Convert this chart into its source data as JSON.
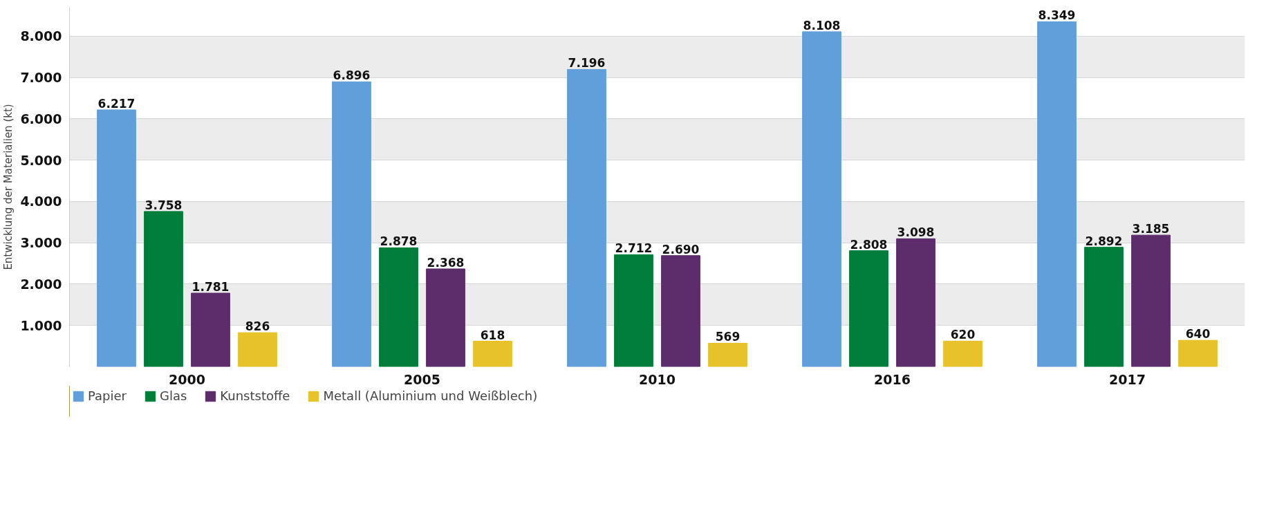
{
  "chart_data": {
    "type": "bar",
    "ylabel": "Entwicklung der Materialien (kt)",
    "categories": [
      "2000",
      "2005",
      "2010",
      "2016",
      "2017"
    ],
    "series": [
      {
        "name": "Papier",
        "color": "#619fda",
        "values": [
          6217,
          6896,
          7196,
          8108,
          8349
        ],
        "value_labels": [
          "6.217",
          "6.896",
          "7.196",
          "8.108",
          "8.349"
        ]
      },
      {
        "name": "Glas",
        "color": "#007d3a",
        "values": [
          3758,
          2878,
          2712,
          2808,
          2892
        ],
        "value_labels": [
          "3.758",
          "2.878",
          "2.712",
          "2.808",
          "2.892"
        ]
      },
      {
        "name": "Kunststoffe",
        "color": "#5c2d6a",
        "values": [
          1781,
          2368,
          2690,
          3098,
          3185
        ],
        "value_labels": [
          "1.781",
          "2.368",
          "2.690",
          "3.098",
          "3.185"
        ]
      },
      {
        "name": "Metall (Aluminium und Weißblech)",
        "color": "#e8c22a",
        "values": [
          826,
          618,
          569,
          620,
          640
        ],
        "value_labels": [
          "826",
          "618",
          "569",
          "620",
          "640"
        ]
      }
    ],
    "ylim": [
      0,
      8700
    ],
    "yticks": [
      {
        "value": 1000,
        "label": "1.000"
      },
      {
        "value": 2000,
        "label": "2.000"
      },
      {
        "value": 3000,
        "label": "3.000"
      },
      {
        "value": 4000,
        "label": "4.000"
      },
      {
        "value": 5000,
        "label": "5.000"
      },
      {
        "value": 6000,
        "label": "6.000"
      },
      {
        "value": 7000,
        "label": "7.000"
      },
      {
        "value": 8000,
        "label": "8.000"
      }
    ],
    "grid": "y",
    "legend": "bottom left"
  }
}
